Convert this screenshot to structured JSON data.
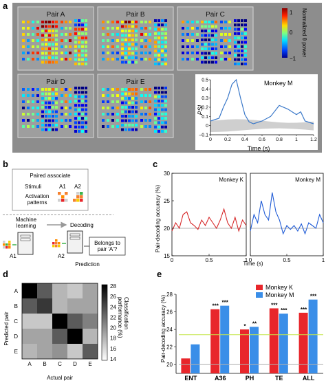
{
  "panel_labels": {
    "a": "a",
    "b": "b",
    "c": "c",
    "d": "d",
    "e": "e"
  },
  "panel_a": {
    "pairs": [
      "Pair A",
      "Pair B",
      "Pair C",
      "Pair D",
      "Pair E"
    ],
    "colorbar": {
      "label": "Normalized θ power",
      "ticks": [
        "1",
        "0",
        "−1"
      ],
      "range": [
        -1,
        1
      ]
    },
    "psi_inset": {
      "monkey": "Monkey M",
      "ylabel": "PSI",
      "xlabel": "Time (s)",
      "xticks": [
        "0",
        "0.2",
        "0.4",
        "0.6",
        "0.8",
        "1",
        "1.2"
      ],
      "yticks": [
        "−0.1",
        "0",
        "0.1",
        "0.2",
        "0.3",
        "0.4",
        "0.5"
      ]
    }
  },
  "panel_b": {
    "box_title": "Paired associate",
    "stimuli_label": "Stimuli",
    "a1": "A1",
    "a2": "A2",
    "activation": "Activation\npatterns",
    "ml": "Machine\nlearning",
    "decoding": "Decoding",
    "question": "Belongs to\npair 'A'?",
    "prediction": "Prediction"
  },
  "panel_c": {
    "ylabel": "Pair-decoding accuracy (%)",
    "xlabel": "Time (s)",
    "yticks": [
      "15",
      "20",
      "25",
      "30"
    ],
    "xticks": [
      "0",
      "0.5",
      "1"
    ],
    "monkey_k": "Monkey K",
    "monkey_m": "Monkey M",
    "colors": {
      "k": "#d62728",
      "m": "#1f5bd6"
    }
  },
  "panel_d": {
    "ylabel": "Predicted pair",
    "xlabel": "Actual pair",
    "labels": [
      "A",
      "B",
      "C",
      "D",
      "E"
    ],
    "colorbar_label": "Classification\nperformance (%)",
    "colorbar_ticks": [
      "28",
      "26",
      "24",
      "22",
      "20",
      "18",
      "16",
      "14"
    ]
  },
  "panel_e": {
    "ylabel": "Pair-decoding accuracy (%)",
    "yticks": [
      "20",
      "22",
      "24",
      "26",
      "28"
    ],
    "legend": [
      "Monkey K",
      "Monkey M"
    ],
    "colors": {
      "k": "#e8262b",
      "m": "#3a8ee8"
    }
  },
  "chart_data": [
    {
      "type": "line",
      "panel": "c-left",
      "title": "Monkey K",
      "xlabel": "Time (s)",
      "ylabel": "Pair-decoding accuracy (%)",
      "xlim": [
        0,
        1
      ],
      "ylim": [
        15,
        30
      ],
      "baseline": 20,
      "x": [
        0,
        0.05,
        0.1,
        0.15,
        0.2,
        0.25,
        0.3,
        0.35,
        0.4,
        0.45,
        0.5,
        0.55,
        0.6,
        0.65,
        0.7,
        0.75,
        0.8,
        0.85,
        0.9,
        0.95,
        1.0
      ],
      "y": [
        19.5,
        21,
        20,
        22.5,
        23,
        21,
        20.5,
        19.8,
        21.5,
        20.5,
        22,
        21,
        20,
        21.5,
        23.5,
        21,
        20,
        22,
        19.5,
        21.5,
        20.5
      ]
    },
    {
      "type": "line",
      "panel": "c-right",
      "title": "Monkey M",
      "xlabel": "Time (s)",
      "xlim": [
        0,
        1
      ],
      "ylim": [
        15,
        30
      ],
      "baseline": 20,
      "x": [
        0,
        0.05,
        0.1,
        0.15,
        0.2,
        0.25,
        0.3,
        0.35,
        0.4,
        0.45,
        0.5,
        0.55,
        0.6,
        0.65,
        0.7,
        0.75,
        0.8,
        0.85,
        0.9,
        0.95,
        1.0
      ],
      "y": [
        19.5,
        22.5,
        21,
        25,
        22.5,
        21.5,
        26.5,
        23,
        21.5,
        19,
        20.5,
        19.8,
        20.5,
        19.5,
        20.8,
        19,
        21,
        20.5,
        20,
        22.5,
        21
      ]
    },
    {
      "type": "line",
      "panel": "a-inset",
      "title": "Monkey M",
      "xlabel": "Time (s)",
      "ylabel": "PSI",
      "xlim": [
        0,
        1.2
      ],
      "ylim": [
        -0.1,
        0.5
      ],
      "x": [
        0,
        0.1,
        0.15,
        0.2,
        0.25,
        0.3,
        0.35,
        0.4,
        0.45,
        0.5,
        0.6,
        0.7,
        0.8,
        0.9,
        1.0,
        1.05,
        1.1,
        1.2
      ],
      "y": [
        0.05,
        0.08,
        0.2,
        0.3,
        0.45,
        0.5,
        0.3,
        0.12,
        0.04,
        0.02,
        0.05,
        0.1,
        0.22,
        0.18,
        0.12,
        0.15,
        0.05,
        0.02
      ],
      "shaded_band": {
        "upper": 0.05,
        "lower": -0.05
      }
    },
    {
      "type": "heatmap",
      "panel": "d",
      "xlabel": "Actual pair",
      "ylabel": "Predicted pair",
      "categories": [
        "A",
        "B",
        "C",
        "D",
        "E"
      ],
      "values": [
        [
          28,
          23,
          18,
          17,
          19
        ],
        [
          23,
          25,
          18,
          19,
          19
        ],
        [
          17,
          17,
          28,
          23,
          21
        ],
        [
          19,
          19,
          23,
          28,
          18
        ],
        [
          18,
          19,
          20,
          17,
          23
        ]
      ],
      "range": [
        14,
        28
      ]
    },
    {
      "type": "bar",
      "panel": "e",
      "ylabel": "Pair-decoding accuracy (%)",
      "ylim": [
        19,
        28
      ],
      "categories": [
        "ENT",
        "A36",
        "PH",
        "TE",
        "ALL"
      ],
      "series": [
        {
          "name": "Monkey K",
          "values": [
            20.7,
            26.3,
            24.0,
            26.4,
            25.9
          ]
        },
        {
          "name": "Monkey M",
          "values": [
            22.3,
            26.7,
            24.3,
            25.8,
            27.4
          ]
        }
      ],
      "significance": [
        [
          "",
          ""
        ],
        [
          "***",
          "***"
        ],
        [
          "*",
          "**"
        ],
        [
          "***",
          "***"
        ],
        [
          "***",
          "***"
        ]
      ],
      "chance_lines": [
        23.4,
        20.0
      ]
    }
  ]
}
